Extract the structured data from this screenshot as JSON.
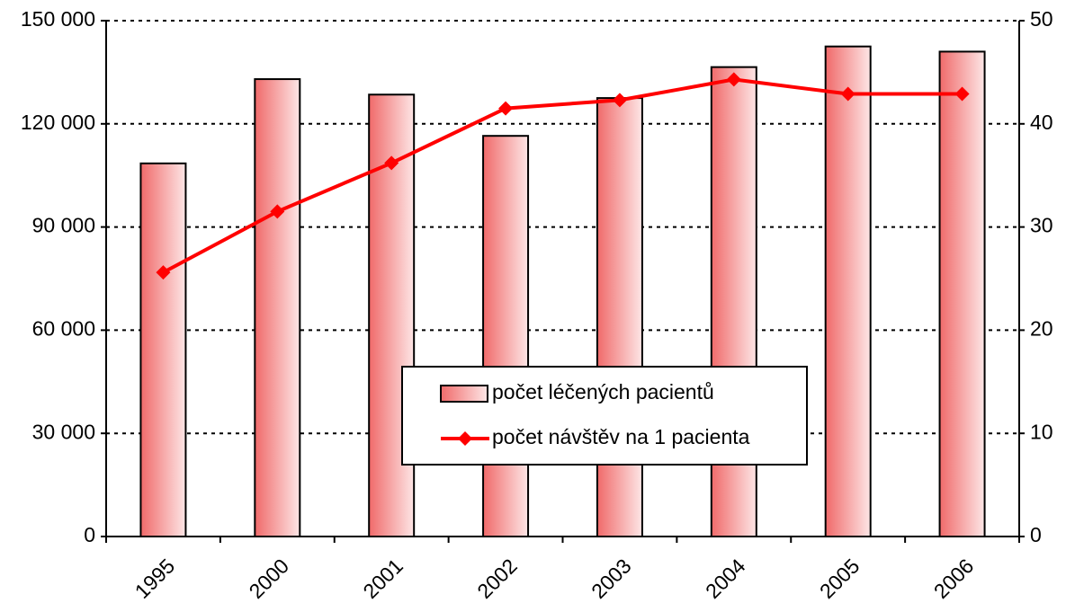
{
  "chart_data": {
    "type": "bar",
    "categories": [
      "1995",
      "2000",
      "2001",
      "2002",
      "2003",
      "2004",
      "2005",
      "2006"
    ],
    "series": [
      {
        "name": "počet léčených pacientů",
        "type": "bar",
        "color": "#f07070",
        "values": [
          108500,
          133000,
          128500,
          116500,
          127500,
          136500,
          142500,
          141000
        ]
      },
      {
        "name": "počet návštěv na 1 pacienta",
        "type": "line",
        "axis": "y2",
        "color": "#ff0000",
        "values": [
          25.6,
          31.5,
          36.2,
          41.5,
          42.3,
          44.3,
          42.9,
          42.9
        ]
      }
    ],
    "ylim": [
      0,
      150000
    ],
    "yticks": [
      {
        "value": 0,
        "label": "0"
      },
      {
        "value": 30000,
        "label": "30 000"
      },
      {
        "value": 60000,
        "label": "60 000"
      },
      {
        "value": 90000,
        "label": "90 000"
      },
      {
        "value": 120000,
        "label": "120 000"
      },
      {
        "value": 150000,
        "label": "150 000"
      }
    ],
    "y2lim": [
      0,
      50
    ],
    "y2ticks": [
      0,
      10,
      20,
      30,
      40,
      50
    ],
    "grid": true,
    "legend": "center"
  }
}
